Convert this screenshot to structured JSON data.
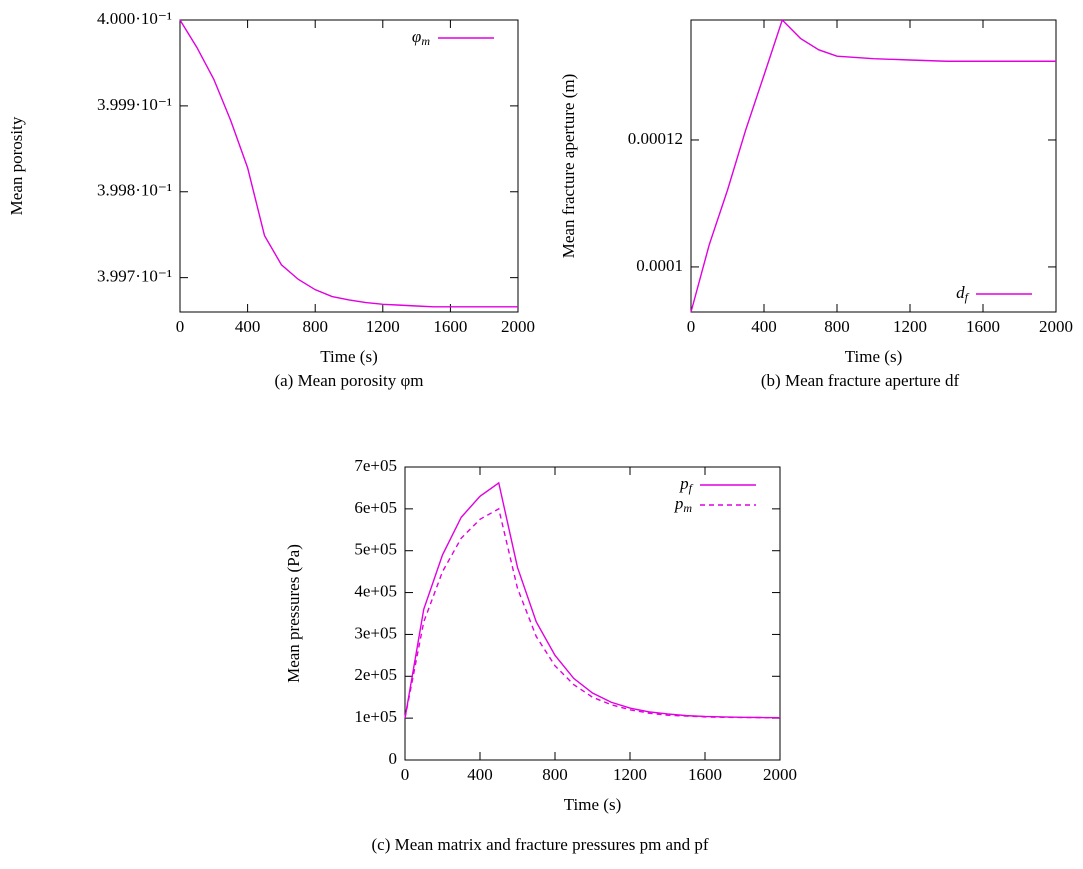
{
  "chart_data": [
    {
      "type": "line",
      "caption": "(a) Mean porosity φm",
      "xlabel": "Time (s)",
      "ylabel": "Mean porosity",
      "x": [
        0,
        100,
        200,
        300,
        400,
        500,
        600,
        700,
        800,
        900,
        1000,
        1100,
        1200,
        1300,
        1400,
        1500,
        1600,
        1700,
        1800,
        1900,
        2000
      ],
      "series": [
        {
          "name": "φm",
          "color": "#e000e0",
          "dash": false,
          "values": [
            0.4,
            0.399968,
            0.399931,
            0.399883,
            0.399828,
            0.399749,
            0.399715,
            0.399698,
            0.399686,
            0.399678,
            0.399674,
            0.399671,
            0.399669,
            0.399668,
            0.399667,
            0.399666,
            0.399666,
            0.399666,
            0.399666,
            0.399666,
            0.399666
          ]
        }
      ],
      "xlim": [
        0,
        2000
      ],
      "xticks": [
        0,
        400,
        800,
        1200,
        1600,
        2000
      ],
      "ylim": [
        0.39966,
        0.4
      ],
      "yticks": [
        {
          "value": 0.3997,
          "label": "3.997·10⁻¹"
        },
        {
          "value": 0.3998,
          "label": "3.998·10⁻¹"
        },
        {
          "value": 0.3999,
          "label": "3.999·10⁻¹"
        },
        {
          "value": 0.4,
          "label": "4.000·10⁻¹"
        }
      ],
      "legend": "upper right"
    },
    {
      "type": "line",
      "caption": "(b) Mean fracture aperture df",
      "xlabel": "Time (s)",
      "ylabel": "Mean fracture aperture (m)",
      "x": [
        0,
        100,
        200,
        300,
        400,
        500,
        600,
        700,
        800,
        900,
        1000,
        1100,
        1200,
        1300,
        1400,
        1500,
        1600,
        1700,
        1800,
        1900,
        2000
      ],
      "series": [
        {
          "name": "df",
          "color": "#e000e0",
          "dash": false,
          "values": [
            9.29e-05,
            0.0001035,
            0.0001121,
            0.0001216,
            0.0001302,
            0.0001389,
            0.000136,
            0.0001342,
            0.0001332,
            0.000133,
            0.0001328,
            0.0001327,
            0.0001326,
            0.0001325,
            0.0001324,
            0.0001324,
            0.0001324,
            0.0001324,
            0.0001324,
            0.0001324,
            0.0001324
          ]
        }
      ],
      "xlim": [
        0,
        2000
      ],
      "xticks": [
        0,
        400,
        800,
        1200,
        1600,
        2000
      ],
      "ylim": [
        9.29e-05,
        0.0001389
      ],
      "yticks": [
        0.0001,
        0.00012
      ],
      "legend": "lower right"
    },
    {
      "type": "line",
      "caption": "(c) Mean matrix and fracture pressures pm and pf",
      "xlabel": "Time (s)",
      "ylabel": "Mean pressures (Pa)",
      "x": [
        0,
        100,
        200,
        300,
        400,
        500,
        600,
        700,
        800,
        900,
        1000,
        1100,
        1200,
        1300,
        1400,
        1500,
        1600,
        1700,
        1800,
        1900,
        2000
      ],
      "series": [
        {
          "name": "pf",
          "color": "#e000e0",
          "dash": false,
          "values": [
            100000,
            360000,
            490000,
            580000,
            630000,
            662000,
            460000,
            330000,
            250000,
            195000,
            160000,
            138000,
            124000,
            115000,
            110000,
            106000,
            104000,
            103000,
            102000,
            101500,
            101000
          ]
        },
        {
          "name": "pm",
          "color": "#e000e0",
          "dash": true,
          "values": [
            100000,
            330000,
            450000,
            530000,
            575000,
            600000,
            410000,
            295000,
            225000,
            180000,
            150000,
            132000,
            120000,
            112000,
            107000,
            105000,
            103000,
            102000,
            101500,
            101200,
            101000
          ]
        }
      ],
      "xlim": [
        0,
        2000
      ],
      "xticks": [
        0,
        400,
        800,
        1200,
        1600,
        2000
      ],
      "ylim": [
        0,
        700000
      ],
      "yticks": [
        0,
        {
          "value": 100000,
          "label": "1e+05"
        },
        {
          "value": 200000,
          "label": "2e+05"
        },
        {
          "value": 300000,
          "label": "3e+05"
        },
        {
          "value": 400000,
          "label": "4e+05"
        },
        {
          "value": 500000,
          "label": "5e+05"
        },
        {
          "value": 600000,
          "label": "6e+05"
        },
        {
          "value": 700000,
          "label": "7e+05"
        }
      ],
      "legend": "upper right"
    }
  ]
}
